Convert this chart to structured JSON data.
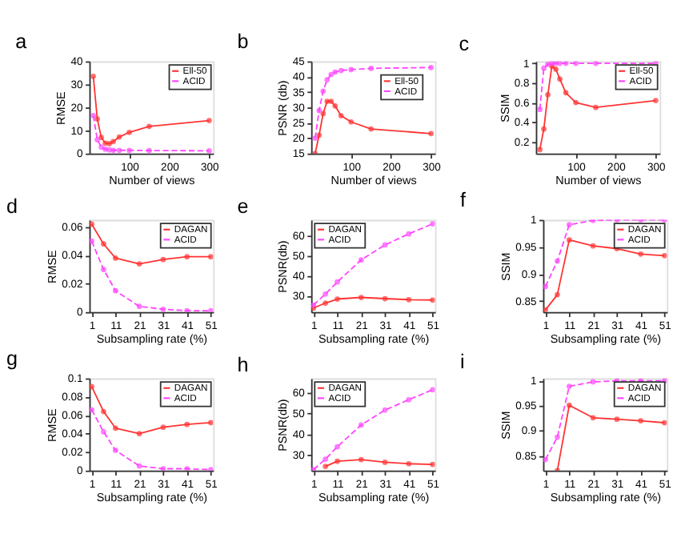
{
  "chart_data": [
    {
      "type": "line",
      "title": "a",
      "xlabel": "Number of views",
      "ylabel": "RMSE",
      "x": [
        10,
        20,
        30,
        40,
        50,
        60,
        75,
        100,
        150,
        300
      ],
      "xlim": [
        0,
        310
      ],
      "xticks": [
        100,
        200,
        300
      ],
      "ylim": [
        0,
        40
      ],
      "yticks": [
        0,
        10,
        20,
        30,
        40
      ],
      "legend": "top right",
      "grid": false,
      "series": [
        {
          "name": "Ell-50",
          "color": "#ff3333",
          "line_style": "solid",
          "marker": "circle",
          "values": [
            33.5,
            15,
            7,
            4.5,
            4.3,
            5.2,
            7.2,
            9.2,
            11.8,
            14.3
          ]
        },
        {
          "name": "ACID",
          "color": "#ff44ff",
          "line_style": "dashed",
          "marker": "circle",
          "values": [
            16.5,
            6,
            2.8,
            1.9,
            1.6,
            1.4,
            1.4,
            1.4,
            1.3,
            1.2
          ]
        }
      ]
    },
    {
      "type": "line",
      "title": "b",
      "xlabel": "Number of views",
      "ylabel": "PSNR (db)",
      "x": [
        10,
        20,
        30,
        40,
        50,
        60,
        75,
        100,
        150,
        300
      ],
      "xlim": [
        0,
        310
      ],
      "xticks": [
        100,
        200,
        300
      ],
      "ylim": [
        15,
        45
      ],
      "yticks": [
        15,
        20,
        25,
        30,
        35,
        40,
        45
      ],
      "legend": "top right",
      "grid": false,
      "series": [
        {
          "name": "Ell-50",
          "color": "#ff3333",
          "line_style": "solid",
          "marker": "circle",
          "values": [
            15,
            21,
            28,
            32,
            32,
            30.5,
            27.3,
            25.3,
            23,
            21.5
          ]
        },
        {
          "name": "ACID",
          "color": "#ff44ff",
          "line_style": "dashed",
          "marker": "circle",
          "values": [
            20,
            29,
            35.3,
            39,
            40.7,
            41.5,
            42,
            42.3,
            42.7,
            43
          ]
        }
      ]
    },
    {
      "type": "line",
      "title": "c",
      "xlabel": "Number of views",
      "ylabel": "SSIM",
      "x": [
        10,
        20,
        30,
        40,
        50,
        60,
        75,
        100,
        150,
        300
      ],
      "xlim": [
        0,
        310
      ],
      "xticks": [
        100,
        200,
        300
      ],
      "ylim": [
        0.08,
        1.02
      ],
      "yticks": [
        0.2,
        0.4,
        0.6,
        0.8,
        1
      ],
      "legend": "top right",
      "grid": false,
      "series": [
        {
          "name": "Ell-50",
          "color": "#ff3333",
          "line_style": "solid",
          "marker": "circle",
          "values": [
            0.12,
            0.33,
            0.68,
            0.97,
            0.94,
            0.84,
            0.7,
            0.6,
            0.55,
            0.62
          ]
        },
        {
          "name": "ACID",
          "color": "#ff44ff",
          "line_style": "dashed",
          "marker": "circle",
          "values": [
            0.53,
            0.95,
            0.99,
            1.0,
            1.0,
            1.0,
            1.0,
            1.0,
            1.0,
            1.0
          ]
        }
      ]
    },
    {
      "type": "line",
      "title": "d",
      "xlabel": "Subsampling rate (%)",
      "ylabel": "RMSE",
      "x": [
        1,
        6,
        11,
        21,
        31,
        41,
        51
      ],
      "xlim": [
        0,
        52
      ],
      "xticks": [
        1,
        11,
        21,
        31,
        41,
        51
      ],
      "ylim": [
        0,
        0.065
      ],
      "yticks": [
        0,
        0.02,
        0.04,
        0.06
      ],
      "legend": "top right",
      "grid": false,
      "series": [
        {
          "name": "DAGAN",
          "color": "#ff3333",
          "line_style": "solid",
          "marker": "circle",
          "values": [
            0.062,
            0.048,
            0.038,
            0.034,
            0.037,
            0.039,
            0.039
          ]
        },
        {
          "name": "ACID",
          "color": "#ff44ff",
          "line_style": "dashed",
          "marker": "circle",
          "values": [
            0.05,
            0.03,
            0.015,
            0.004,
            0.002,
            0.001,
            0.001
          ]
        }
      ]
    },
    {
      "type": "line",
      "title": "e",
      "xlabel": "Subsampling rate (%)",
      "ylabel": "PSNR(db)",
      "x": [
        1,
        6,
        11,
        21,
        31,
        41,
        51
      ],
      "xlim": [
        0,
        52
      ],
      "xticks": [
        1,
        11,
        21,
        31,
        41,
        51
      ],
      "ylim": [
        22,
        68
      ],
      "yticks": [
        30,
        40,
        50,
        60
      ],
      "legend": "top left",
      "grid": false,
      "series": [
        {
          "name": "DAGAN",
          "color": "#ff3333",
          "line_style": "solid",
          "marker": "circle",
          "values": [
            24,
            26.5,
            28.5,
            29.3,
            28.7,
            28.2,
            28
          ]
        },
        {
          "name": "ACID",
          "color": "#ff44ff",
          "line_style": "dashed",
          "marker": "circle",
          "values": [
            25.5,
            31,
            37,
            48,
            55.5,
            61,
            66
          ]
        }
      ]
    },
    {
      "type": "line",
      "title": "f",
      "xlabel": "Subsampling rate (%)",
      "ylabel": "SSIM",
      "x": [
        1,
        6,
        11,
        21,
        31,
        41,
        51
      ],
      "xlim": [
        0,
        52
      ],
      "xticks": [
        1,
        11,
        21,
        31,
        41,
        51
      ],
      "ylim": [
        0.83,
        1.0
      ],
      "yticks": [
        0.85,
        0.9,
        0.95,
        1
      ],
      "legend": "top right",
      "grid": false,
      "series": [
        {
          "name": "DAGAN",
          "color": "#ff3333",
          "line_style": "solid",
          "marker": "circle",
          "values": [
            0.834,
            0.862,
            0.963,
            0.952,
            0.947,
            0.937,
            0.934
          ]
        },
        {
          "name": "ACID",
          "color": "#ff44ff",
          "line_style": "dashed",
          "marker": "circle",
          "values": [
            0.877,
            0.924,
            0.991,
            0.999,
            1.0,
            1.0,
            1.0
          ]
        }
      ]
    },
    {
      "type": "line",
      "title": "g",
      "xlabel": "Subsampling rate (%)",
      "ylabel": "RMSE",
      "x": [
        1,
        6,
        11,
        21,
        31,
        41,
        51
      ],
      "xlim": [
        0,
        52
      ],
      "xticks": [
        1,
        11,
        21,
        31,
        41,
        51
      ],
      "ylim": [
        0,
        0.1
      ],
      "yticks": [
        0,
        0.02,
        0.04,
        0.06,
        0.08,
        0.1
      ],
      "legend": "top right",
      "grid": false,
      "series": [
        {
          "name": "DAGAN",
          "color": "#ff3333",
          "line_style": "solid",
          "marker": "circle",
          "values": [
            0.091,
            0.064,
            0.046,
            0.04,
            0.047,
            0.05,
            0.052
          ]
        },
        {
          "name": "ACID",
          "color": "#ff44ff",
          "line_style": "dashed",
          "marker": "circle",
          "values": [
            0.066,
            0.042,
            0.022,
            0.005,
            0.002,
            0.002,
            0.001
          ]
        }
      ]
    },
    {
      "type": "line",
      "title": "h",
      "xlabel": "Subsampling rate (%)",
      "ylabel": "PSNR(db)",
      "x": [
        1,
        6,
        11,
        21,
        31,
        41,
        51
      ],
      "xlim": [
        0,
        52
      ],
      "xticks": [
        1,
        11,
        21,
        31,
        41,
        51
      ],
      "ylim": [
        22.5,
        67
      ],
      "yticks": [
        30,
        40,
        50,
        60
      ],
      "legend": "top left",
      "grid": false,
      "series": [
        {
          "name": "DAGAN",
          "color": "#ff3333",
          "line_style": "solid",
          "marker": "circle",
          "values": [
            null,
            24.5,
            27,
            27.8,
            26.5,
            25.8,
            25.5
          ]
        },
        {
          "name": "ACID",
          "color": "#ff44ff",
          "line_style": "dashed",
          "marker": "circle",
          "values": [
            23,
            28,
            34,
            44.5,
            51.7,
            56.7,
            61.5
          ]
        }
      ]
    },
    {
      "type": "line",
      "title": "i",
      "xlabel": "Subsampling rate (%)",
      "ylabel": "SSIM",
      "x": [
        1,
        6,
        11,
        21,
        31,
        41,
        51
      ],
      "xlim": [
        0,
        52
      ],
      "xticks": [
        1,
        11,
        21,
        31,
        41,
        51
      ],
      "ylim": [
        0.82,
        1.005
      ],
      "yticks": [
        0.85,
        0.9,
        0.95,
        1
      ],
      "legend": "top right",
      "grid": false,
      "series": [
        {
          "name": "DAGAN",
          "color": "#ff3333",
          "line_style": "solid",
          "marker": "circle",
          "values": [
            null,
            0.82,
            0.951,
            0.926,
            0.923,
            0.92,
            0.916
          ]
        },
        {
          "name": "ACID",
          "color": "#ff44ff",
          "line_style": "dashed",
          "marker": "circle",
          "values": [
            0.842,
            0.887,
            0.989,
            0.998,
            1.0,
            1.0,
            1.0
          ]
        }
      ]
    }
  ]
}
